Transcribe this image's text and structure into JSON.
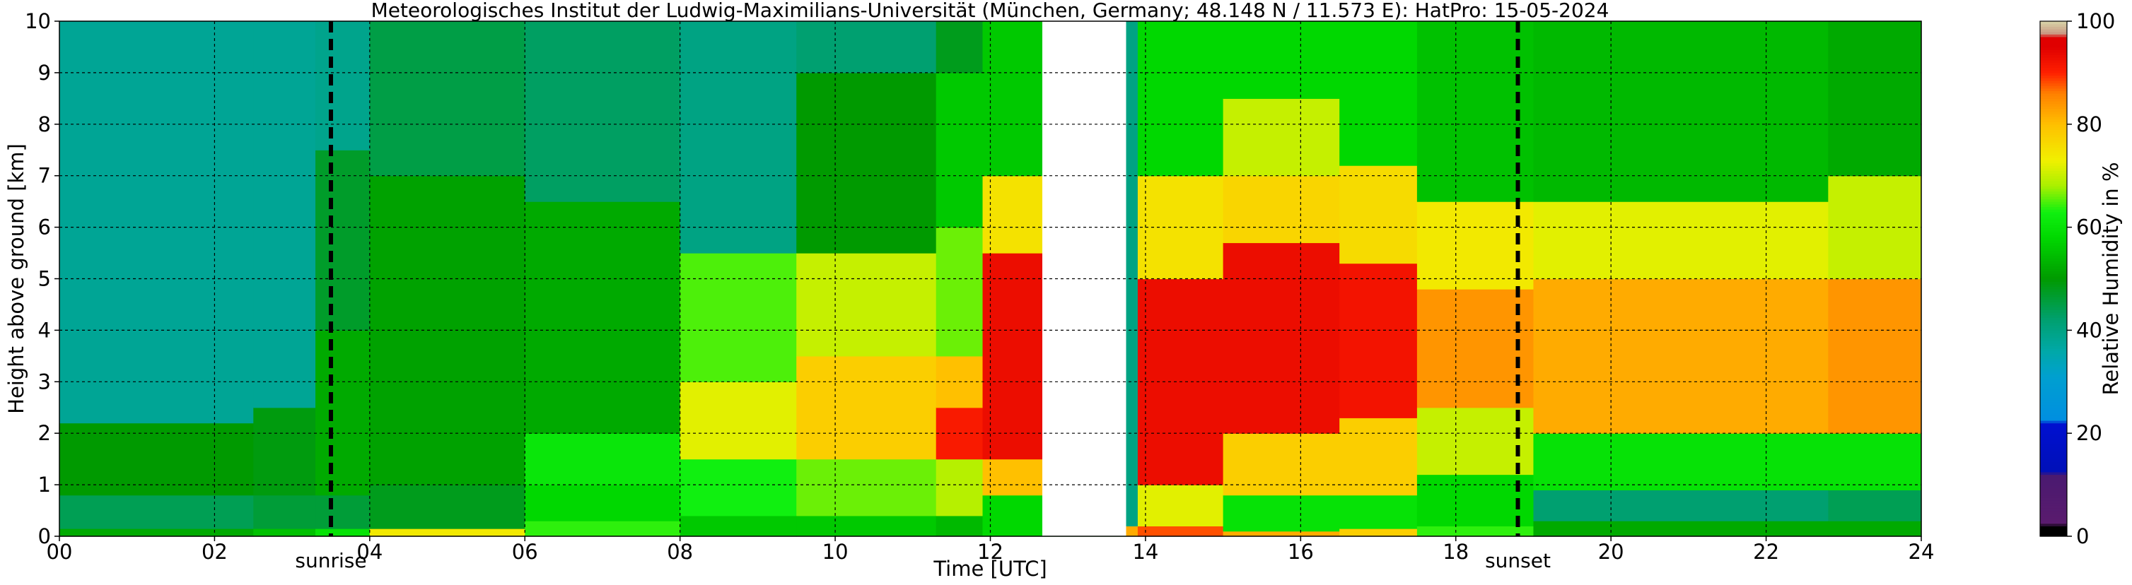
{
  "chart_data": {
    "type": "heatmap",
    "title": "Meteorologisches Institut der Ludwig-Maximilians-Universität (München, Germany; 48.148 N / 11.573 E):    HatPro: 15-05-2024",
    "xlabel": "Time [UTC]",
    "ylabel": "Height above ground [km]",
    "xlim": [
      0,
      24
    ],
    "ylim": [
      0,
      10
    ],
    "x_ticks": [
      0,
      2,
      4,
      6,
      8,
      10,
      12,
      14,
      16,
      18,
      20,
      22,
      24
    ],
    "x_tick_labels": [
      "00",
      "02",
      "04",
      "06",
      "08",
      "10",
      "12",
      "14",
      "16",
      "18",
      "20",
      "22",
      "24"
    ],
    "y_ticks": [
      0,
      1,
      2,
      3,
      4,
      5,
      6,
      7,
      8,
      9,
      10
    ],
    "y_tick_labels": [
      "0",
      "1",
      "2",
      "3",
      "4",
      "5",
      "6",
      "7",
      "8",
      "9",
      "10"
    ],
    "grid": true,
    "data_gap": [
      12.67,
      13.75
    ],
    "events": [
      {
        "label": "sunrise",
        "x": 3.5
      },
      {
        "label": "sunset",
        "x": 18.8
      }
    ],
    "colorbar": {
      "label": "Relative Humidity in %",
      "range": [
        0,
        100
      ],
      "ticks": [
        0,
        20,
        40,
        60,
        80,
        100
      ],
      "tick_labels": [
        "0",
        "20",
        "40",
        "60",
        "80",
        "100"
      ],
      "stops": [
        {
          "v": 0,
          "color": "#000000"
        },
        {
          "v": 2,
          "color": "#000000"
        },
        {
          "v": 2.5,
          "color": "#5a1b6e"
        },
        {
          "v": 12,
          "color": "#4a1a70"
        },
        {
          "v": 12.5,
          "color": "#0010b8"
        },
        {
          "v": 22,
          "color": "#0010d0"
        },
        {
          "v": 22.5,
          "color": "#008ee0"
        },
        {
          "v": 31,
          "color": "#00a0d0"
        },
        {
          "v": 36,
          "color": "#00a8a8"
        },
        {
          "v": 42,
          "color": "#00a070"
        },
        {
          "v": 50,
          "color": "#009a00"
        },
        {
          "v": 58,
          "color": "#00d800"
        },
        {
          "v": 63,
          "color": "#10f010"
        },
        {
          "v": 68,
          "color": "#a8f000"
        },
        {
          "v": 73,
          "color": "#f0f000"
        },
        {
          "v": 80,
          "color": "#ffc000"
        },
        {
          "v": 86,
          "color": "#ff8000"
        },
        {
          "v": 90,
          "color": "#ff2000"
        },
        {
          "v": 95,
          "color": "#e00000"
        },
        {
          "v": 97,
          "color": "#e00000"
        },
        {
          "v": 97.5,
          "color": "#c89480"
        },
        {
          "v": 100,
          "color": "#d8d4a8"
        }
      ]
    },
    "segments": [
      {
        "x": 0.0,
        "layers": [
          [
            0,
            0.15,
            52
          ],
          [
            0.15,
            0.8,
            44
          ],
          [
            0.8,
            2.2,
            50
          ],
          [
            2.2,
            10,
            38
          ]
        ]
      },
      {
        "x": 2.5,
        "layers": [
          [
            0,
            0.15,
            55
          ],
          [
            0.15,
            0.8,
            46
          ],
          [
            0.8,
            2.5,
            49
          ],
          [
            2.5,
            10,
            38
          ]
        ]
      },
      {
        "x": 3.3,
        "layers": [
          [
            0,
            0.15,
            60
          ],
          [
            0.15,
            0.8,
            46
          ],
          [
            0.8,
            4,
            52
          ],
          [
            4,
            7.5,
            47
          ],
          [
            7.5,
            10,
            39
          ]
        ]
      },
      {
        "x": 4.0,
        "layers": [
          [
            0,
            0.15,
            74
          ],
          [
            0.15,
            1,
            48
          ],
          [
            1,
            7,
            51
          ],
          [
            7,
            10,
            45
          ]
        ]
      },
      {
        "x": 6.0,
        "layers": [
          [
            0,
            0.3,
            64
          ],
          [
            0.3,
            1,
            58
          ],
          [
            1,
            2,
            61
          ],
          [
            2,
            6.5,
            52
          ],
          [
            6.5,
            10,
            43
          ]
        ]
      },
      {
        "x": 8.0,
        "layers": [
          [
            0,
            0.4,
            56
          ],
          [
            0.4,
            1.5,
            63
          ],
          [
            1.5,
            3,
            72
          ],
          [
            3,
            5.5,
            65
          ],
          [
            5.5,
            10,
            40
          ]
        ]
      },
      {
        "x": 9.5,
        "layers": [
          [
            0,
            0.4,
            56
          ],
          [
            0.4,
            1.5,
            66
          ],
          [
            1.5,
            3.5,
            78
          ],
          [
            3.5,
            5.5,
            70
          ],
          [
            5.5,
            9,
            50
          ],
          [
            9,
            10,
            42
          ]
        ]
      },
      {
        "x": 11.3,
        "layers": [
          [
            0,
            0.4,
            54
          ],
          [
            0.4,
            1.5,
            69
          ],
          [
            1.5,
            2.5,
            91
          ],
          [
            2.5,
            3.5,
            80
          ],
          [
            3.5,
            6,
            66
          ],
          [
            6,
            9,
            56
          ],
          [
            9,
            10,
            48
          ]
        ]
      },
      {
        "x": 11.9,
        "layers": [
          [
            0,
            0.8,
            58
          ],
          [
            0.8,
            1.5,
            80
          ],
          [
            1.5,
            5.5,
            93
          ],
          [
            5.5,
            7,
            75
          ],
          [
            7,
            10,
            56
          ]
        ]
      },
      {
        "x": 13.75,
        "layers": [
          [
            0,
            0.2,
            82
          ],
          [
            0.2,
            10,
            40
          ]
        ]
      },
      {
        "x": 13.9,
        "layers": [
          [
            0,
            0.2,
            88
          ],
          [
            0.2,
            1,
            72
          ],
          [
            1,
            5,
            93
          ],
          [
            5,
            7,
            75
          ],
          [
            7,
            10,
            58
          ]
        ]
      },
      {
        "x": 15.0,
        "layers": [
          [
            0,
            0.1,
            82
          ],
          [
            0.1,
            0.8,
            60
          ],
          [
            0.8,
            2,
            78
          ],
          [
            2,
            5.7,
            93
          ],
          [
            5.7,
            7,
            77
          ],
          [
            7,
            8.5,
            70
          ],
          [
            8.5,
            10,
            58
          ]
        ]
      },
      {
        "x": 16.5,
        "layers": [
          [
            0,
            0.15,
            78
          ],
          [
            0.15,
            0.8,
            60
          ],
          [
            0.8,
            2.3,
            78
          ],
          [
            2.3,
            5.3,
            92
          ],
          [
            5.3,
            7.2,
            76
          ],
          [
            7.2,
            10,
            58
          ]
        ]
      },
      {
        "x": 17.5,
        "layers": [
          [
            0,
            0.2,
            64
          ],
          [
            0.2,
            1.2,
            58
          ],
          [
            1.2,
            2.5,
            70
          ],
          [
            2.5,
            4.8,
            84
          ],
          [
            4.8,
            6.5,
            74
          ],
          [
            6.5,
            10,
            55
          ]
        ]
      },
      {
        "x": 19.0,
        "layers": [
          [
            0,
            0.3,
            52
          ],
          [
            0.3,
            0.9,
            42
          ],
          [
            0.9,
            2,
            60
          ],
          [
            2,
            5,
            82
          ],
          [
            5,
            6.5,
            72
          ],
          [
            6.5,
            10,
            54
          ]
        ]
      },
      {
        "x": 22.8,
        "layers": [
          [
            0,
            0.3,
            52
          ],
          [
            0.3,
            0.9,
            44
          ],
          [
            0.9,
            2,
            60
          ],
          [
            2,
            5,
            84
          ],
          [
            5,
            7,
            70
          ],
          [
            7,
            10,
            52
          ]
        ]
      },
      {
        "x": 24.0,
        "layers": [
          [
            0,
            0.3,
            52
          ],
          [
            0.3,
            0.9,
            44
          ],
          [
            0.9,
            2,
            60
          ],
          [
            2,
            5,
            84
          ],
          [
            5,
            7,
            70
          ],
          [
            7,
            10,
            52
          ]
        ]
      }
    ]
  }
}
